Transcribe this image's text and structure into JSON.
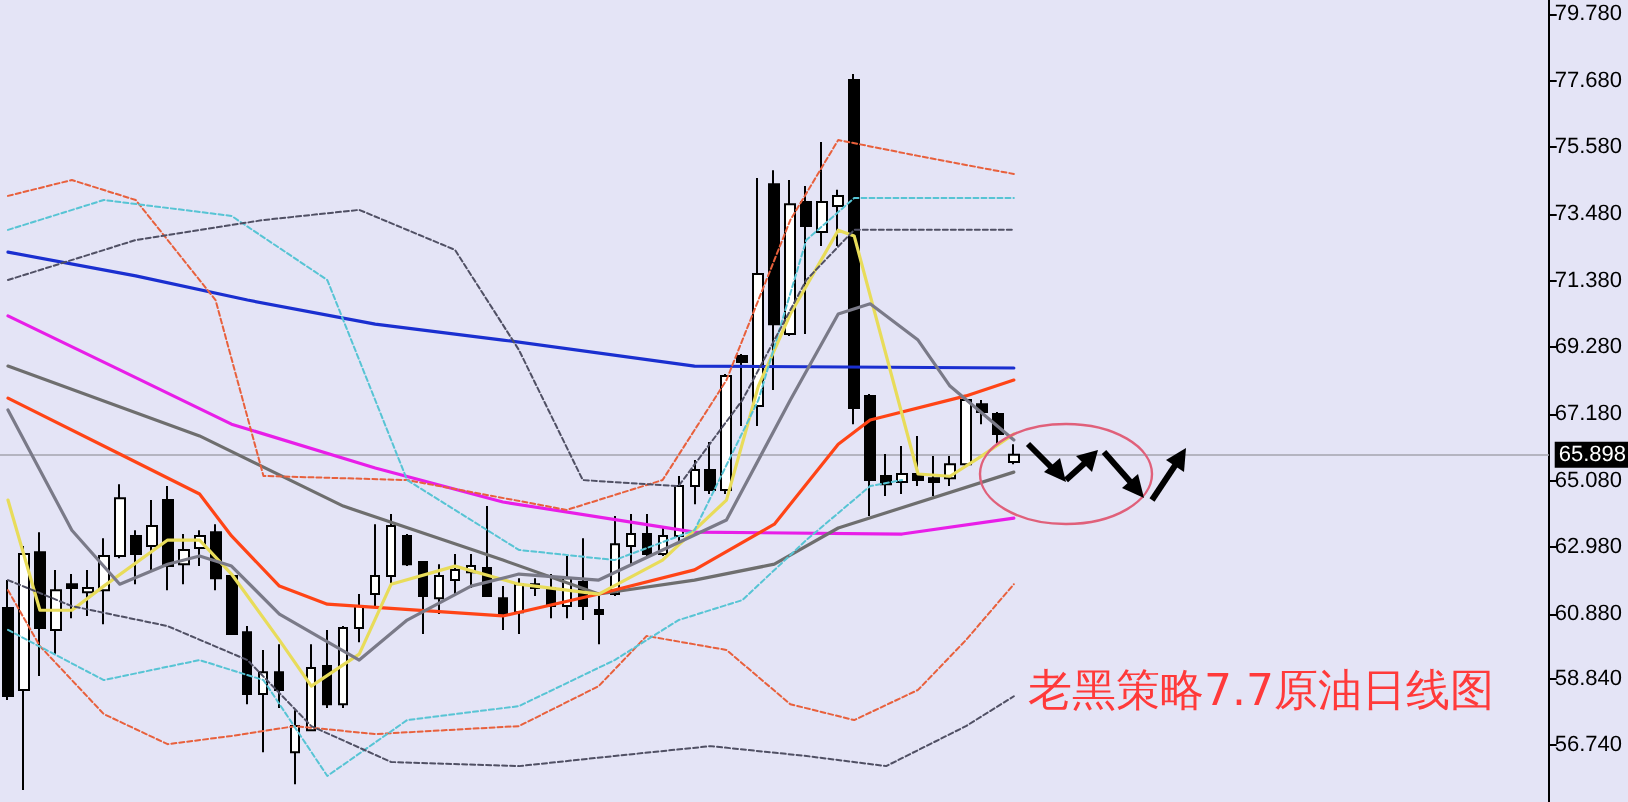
{
  "chart_data": {
    "type": "candlestick",
    "title": "老黑策略7.7原油日线图",
    "categories": [
      null,
      null,
      null,
      null,
      null,
      null,
      null,
      null,
      null,
      null,
      null,
      null,
      null,
      null,
      null,
      null,
      null,
      null,
      null,
      null,
      null,
      null,
      null,
      null,
      null,
      null,
      null,
      null,
      null,
      null,
      null,
      null,
      null,
      null,
      null,
      null,
      null,
      null,
      null,
      null,
      null,
      null,
      null,
      null,
      null,
      null,
      null,
      null,
      null,
      null,
      null,
      null,
      null,
      null,
      null,
      null,
      null,
      null,
      null,
      null,
      null,
      null,
      null,
      null,
      null,
      null,
      null,
      null,
      null,
      null,
      null,
      null,
      null,
      null,
      null,
      null,
      null,
      null,
      null,
      null,
      null,
      null,
      null,
      null,
      null,
      null,
      null,
      null,
      null,
      null,
      null,
      null,
      null,
      null,
      null,
      null,
      null
    ],
    "ohlc": [
      [
        61.07,
        61.95,
        58.17,
        58.3
      ],
      [
        58.49,
        63.02,
        55.34,
        62.77
      ],
      [
        62.83,
        63.46,
        58.93,
        60.44
      ],
      [
        60.38,
        62.27,
        59.62,
        61.63
      ],
      [
        61.82,
        62.14,
        60.75,
        61.7
      ],
      [
        61.57,
        62.27,
        60.82,
        61.7
      ],
      [
        61.63,
        63.27,
        60.56,
        62.71
      ],
      [
        62.71,
        64.97,
        62.64,
        64.53
      ],
      [
        63.34,
        63.52,
        61.82,
        62.77
      ],
      [
        63.02,
        64.47,
        62.27,
        63.65
      ],
      [
        64.47,
        64.91,
        61.63,
        62.39
      ],
      [
        62.45,
        63.4,
        61.82,
        62.9
      ],
      [
        62.96,
        63.52,
        62.39,
        63.34
      ],
      [
        63.46,
        63.71,
        61.63,
        62.01
      ],
      [
        62.08,
        62.14,
        60.25,
        60.25
      ],
      [
        60.31,
        60.5,
        58.04,
        58.36
      ],
      [
        58.36,
        59.75,
        56.53,
        59.05
      ],
      [
        59.05,
        59.93,
        57.92,
        58.49
      ],
      [
        56.53,
        57.85,
        55.52,
        57.35
      ],
      [
        57.22,
        59.93,
        57.22,
        59.18
      ],
      [
        59.24,
        60.38,
        57.92,
        58.04
      ],
      [
        58.04,
        60.5,
        57.92,
        60.44
      ],
      [
        60.44,
        61.51,
        59.99,
        61.13
      ],
      [
        61.51,
        63.71,
        61.13,
        62.08
      ],
      [
        62.08,
        64.03,
        61.76,
        63.65
      ],
      [
        63.34,
        63.4,
        62.39,
        62.45
      ],
      [
        62.52,
        62.52,
        60.25,
        61.45
      ],
      [
        61.38,
        62.45,
        60.88,
        62.08
      ],
      [
        61.95,
        62.77,
        61.51,
        62.27
      ],
      [
        62.2,
        62.77,
        61.7,
        62.39
      ],
      [
        62.33,
        64.28,
        61.45,
        61.45
      ],
      [
        61.38,
        61.76,
        60.38,
        60.88
      ],
      [
        60.94,
        62.01,
        60.25,
        61.82
      ],
      [
        61.82,
        62.01,
        61.45,
        61.7
      ],
      [
        61.7,
        62.14,
        60.75,
        61.13
      ],
      [
        61.13,
        62.71,
        60.75,
        62.01
      ],
      [
        61.89,
        63.27,
        60.69,
        61.13
      ],
      [
        61.01,
        61.45,
        59.93,
        60.88
      ],
      [
        61.51,
        63.97,
        61.45,
        63.08
      ],
      [
        63.02,
        64.03,
        62.45,
        63.4
      ],
      [
        63.4,
        64.03,
        62.71,
        62.77
      ],
      [
        62.77,
        63.65,
        62.71,
        63.34
      ],
      [
        63.34,
        65.23,
        63.02,
        64.91
      ],
      [
        64.91,
        65.73,
        64.34,
        65.42
      ],
      [
        65.42,
        66.3,
        64.66,
        64.79
      ],
      [
        64.79,
        68.44,
        64.66,
        68.38
      ],
      [
        69.01,
        69.07,
        66.8,
        68.82
      ],
      [
        67.43,
        74.61,
        66.8,
        71.59
      ],
      [
        74.42,
        74.86,
        67.94,
        70.01
      ],
      [
        69.7,
        74.55,
        69.64,
        73.79
      ],
      [
        73.86,
        74.36,
        69.7,
        73.1
      ],
      [
        72.91,
        75.75,
        72.47,
        73.86
      ],
      [
        73.73,
        74.24,
        72.47,
        74.05
      ],
      [
        77.7,
        77.89,
        66.86,
        67.37
      ],
      [
        67.75,
        67.81,
        63.97,
        65.1
      ],
      [
        65.23,
        65.92,
        64.6,
        64.97
      ],
      [
        65.04,
        66.17,
        64.66,
        65.29
      ],
      [
        65.29,
        66.49,
        64.91,
        65.1
      ],
      [
        65.16,
        65.86,
        64.6,
        65.04
      ],
      [
        65.16,
        65.86,
        64.91,
        65.6
      ],
      [
        65.6,
        67.75,
        65.54,
        67.62
      ],
      [
        67.49,
        67.62,
        66.86,
        67.24
      ],
      [
        67.18,
        67.24,
        66.23,
        66.55
      ],
      [
        65.67,
        66.23,
        65.6,
        65.9
      ],
      null,
      null,
      null,
      null,
      null,
      null,
      null,
      null,
      null,
      null,
      null,
      null,
      null,
      null,
      null,
      null,
      null,
      null,
      null,
      null,
      null,
      null,
      null,
      null,
      null,
      null,
      null,
      null,
      null,
      null,
      null,
      null,
      null
    ],
    "series": [
      {
        "type": "line",
        "color": "#1a2fd0",
        "line_style": "solid",
        "values": [
          72.28,
          null,
          null,
          null,
          null,
          null,
          null,
          null,
          71.53,
          null,
          null,
          null,
          null,
          null,
          null,
          70.77,
          null,
          null,
          null,
          null,
          null,
          null,
          null,
          70.01,
          null,
          null,
          null,
          null,
          null,
          null,
          null,
          69.51,
          null,
          null,
          null,
          null,
          null,
          null,
          null,
          null,
          null,
          null,
          null,
          68.69,
          null,
          null,
          null,
          null,
          null,
          null,
          null,
          null,
          null,
          null,
          null,
          null,
          null,
          null,
          null,
          null,
          null,
          null,
          null,
          68.63,
          null,
          null,
          null,
          null,
          null,
          null,
          null,
          null,
          null,
          null,
          null,
          null,
          null,
          null,
          null,
          null,
          null,
          null,
          null,
          null,
          null,
          null,
          null,
          null,
          null,
          null,
          null,
          null,
          null,
          null,
          null,
          null,
          null
        ]
      },
      {
        "type": "line",
        "color": "#e81ee8",
        "line_style": "solid",
        "values": [
          70.27,
          null,
          null,
          null,
          null,
          null,
          null,
          68.57,
          null,
          null,
          null,
          null,
          null,
          null,
          66.86,
          null,
          null,
          null,
          null,
          null,
          null,
          null,
          null,
          65.48,
          null,
          null,
          null,
          null,
          null,
          null,
          null,
          64.41,
          null,
          null,
          null,
          null,
          null,
          null,
          null,
          null,
          null,
          null,
          null,
          63.46,
          null,
          null,
          null,
          null,
          null,
          null,
          null,
          null,
          null,
          null,
          null,
          null,
          63.4,
          null,
          null,
          null,
          null,
          null,
          null,
          63.9,
          null,
          null,
          null,
          null,
          null,
          null,
          null,
          null,
          null,
          null,
          null,
          null,
          null,
          null,
          null,
          null,
          null,
          null,
          null,
          null,
          null,
          null,
          null,
          null,
          null,
          null,
          null,
          null,
          null,
          null,
          null,
          null,
          null
        ]
      },
      {
        "type": "line",
        "color": "#6e6e6e",
        "line_style": "solid",
        "values": [
          68.69,
          null,
          null,
          null,
          null,
          null,
          null,
          null,
          null,
          null,
          null,
          null,
          66.49,
          null,
          null,
          null,
          null,
          null,
          null,
          null,
          null,
          64.28,
          null,
          null,
          null,
          null,
          null,
          null,
          null,
          null,
          null,
          62.58,
          null,
          null,
          null,
          null,
          null,
          61.51,
          null,
          null,
          null,
          null,
          null,
          61.95,
          null,
          null,
          null,
          null,
          62.45,
          null,
          null,
          null,
          63.59,
          null,
          null,
          null,
          null,
          null,
          null,
          null,
          null,
          null,
          null,
          65.35,
          null,
          null,
          null,
          null,
          null,
          null,
          null,
          null,
          null,
          null,
          null,
          null,
          null,
          null,
          null,
          null,
          null,
          null,
          null,
          null,
          null,
          null,
          null,
          null,
          null,
          null,
          null,
          null,
          null,
          null,
          null,
          null,
          null
        ]
      },
      {
        "type": "line",
        "color": "#ff4416",
        "line_style": "solid",
        "values": [
          67.68,
          null,
          null,
          null,
          null,
          null,
          null,
          65.92,
          null,
          null,
          null,
          null,
          64.66,
          null,
          63.34,
          null,
          null,
          61.76,
          null,
          null,
          61.19,
          null,
          null,
          null,
          null,
          null,
          null,
          null,
          null,
          null,
          null,
          60.82,
          null,
          null,
          null,
          null,
          null,
          61.51,
          null,
          null,
          null,
          null,
          null,
          62.27,
          null,
          null,
          null,
          null,
          63.71,
          null,
          null,
          null,
          66.23,
          null,
          66.99,
          null,
          null,
          null,
          null,
          null,
          67.75,
          null,
          null,
          68.25,
          null,
          null,
          null,
          null,
          null,
          null,
          null,
          null,
          null,
          null,
          null,
          null,
          null,
          null,
          null,
          null,
          null,
          null,
          null,
          null,
          null,
          null,
          null,
          null,
          null,
          null,
          null,
          null,
          null,
          null,
          null,
          null,
          null
        ]
      },
      {
        "type": "line",
        "color": "#e8dc5a",
        "line_style": "solid",
        "values": [
          64.47,
          null,
          61.0,
          null,
          61.0,
          null,
          61.76,
          null,
          null,
          null,
          63.21,
          null,
          63.21,
          null,
          62.14,
          null,
          null,
          60.06,
          null,
          58.61,
          null,
          null,
          59.62,
          null,
          61.82,
          null,
          null,
          null,
          62.39,
          null,
          null,
          null,
          61.82,
          null,
          null,
          null,
          null,
          61.51,
          null,
          null,
          null,
          62.58,
          null,
          null,
          null,
          64.47,
          null,
          68.06,
          null,
          70.33,
          null,
          null,
          72.97,
          72.79,
          null,
          null,
          null,
          65.29,
          null,
          65.22,
          null,
          65.86,
          null,
          66.55,
          null,
          null,
          null,
          null,
          null,
          null,
          null,
          null,
          null,
          null,
          null,
          null,
          null,
          null,
          null,
          null,
          null,
          null,
          null,
          null,
          null,
          null,
          null,
          null,
          null,
          null,
          null,
          null,
          null,
          null,
          null,
          null,
          null
        ]
      },
      {
        "type": "line",
        "color": "#7a7a88",
        "line_style": "solid",
        "values": [
          67.31,
          null,
          null,
          null,
          63.52,
          null,
          null,
          61.82,
          null,
          null,
          62.45,
          null,
          62.71,
          null,
          62.39,
          null,
          null,
          60.88,
          null,
          null,
          null,
          null,
          59.43,
          null,
          null,
          60.69,
          null,
          null,
          null,
          61.76,
          null,
          null,
          62.14,
          null,
          null,
          null,
          null,
          61.95,
          null,
          null,
          null,
          null,
          null,
          null,
          null,
          63.84,
          null,
          null,
          null,
          67.62,
          null,
          null,
          70.33,
          null,
          70.65,
          null,
          null,
          69.51,
          null,
          68.06,
          null,
          null,
          null,
          66.36,
          null,
          null,
          null,
          null,
          null,
          null,
          null,
          null,
          null,
          null,
          null,
          null,
          null,
          null,
          null,
          null,
          null,
          null,
          null,
          null,
          null,
          null,
          null,
          null,
          null,
          null,
          null,
          null,
          null,
          null,
          null,
          null,
          null
        ]
      },
      {
        "type": "line",
        "color": "#e8603c",
        "line_style": "dashed",
        "values": [
          74.05,
          null,
          null,
          null,
          74.55,
          null,
          null,
          null,
          73.92,
          null,
          null,
          null,
          null,
          70.77,
          null,
          null,
          65.23,
          null,
          null,
          null,
          null,
          null,
          null,
          null,
          null,
          65.1,
          null,
          null,
          null,
          null,
          null,
          null,
          null,
          null,
          null,
          64.16,
          null,
          null,
          null,
          null,
          null,
          65.1,
          null,
          null,
          null,
          68.25,
          null,
          null,
          null,
          73.29,
          null,
          null,
          75.81,
          null,
          null,
          null,
          null,
          75.31,
          null,
          null,
          null,
          null,
          null,
          74.74,
          null,
          null,
          null,
          null,
          null,
          null,
          null,
          null,
          null,
          null,
          null,
          null,
          null,
          null,
          null,
          null,
          null,
          null,
          null,
          null,
          null,
          null,
          null,
          null,
          null,
          null,
          null,
          null,
          null,
          null,
          null,
          null,
          null
        ]
      },
      {
        "type": "line",
        "color": "#e8603c",
        "line_style": "dashed",
        "values": [
          61.63,
          null,
          59.87,
          null,
          null,
          null,
          57.73,
          null,
          null,
          null,
          56.78,
          null,
          null,
          null,
          57.04,
          null,
          null,
          null,
          57.35,
          null,
          null,
          null,
          null,
          57.1,
          null,
          null,
          null,
          null,
          null,
          null,
          null,
          null,
          57.35,
          null,
          null,
          null,
          null,
          58.61,
          null,
          null,
          60.19,
          null,
          null,
          null,
          null,
          59.75,
          null,
          null,
          null,
          58.04,
          null,
          null,
          null,
          57.54,
          null,
          null,
          null,
          58.49,
          null,
          null,
          60.06,
          null,
          null,
          61.82,
          null,
          null,
          null,
          null,
          null,
          null,
          null,
          null,
          null,
          null,
          null,
          null,
          null,
          null,
          null,
          null,
          null,
          null,
          null,
          null,
          null,
          null,
          null,
          null,
          null,
          null,
          null,
          null,
          null,
          null,
          null,
          null,
          null
        ]
      },
      {
        "type": "line",
        "color": "#57c4d4",
        "line_style": "dashed",
        "values": [
          72.98,
          null,
          null,
          null,
          null,
          null,
          73.92,
          null,
          null,
          null,
          null,
          null,
          null,
          null,
          73.42,
          null,
          null,
          null,
          null,
          null,
          71.4,
          null,
          null,
          null,
          null,
          65.1,
          null,
          null,
          null,
          null,
          null,
          null,
          62.9,
          null,
          null,
          null,
          null,
          null,
          62.58,
          null,
          null,
          null,
          null,
          63.52,
          null,
          null,
          null,
          67.62,
          null,
          null,
          72.66,
          null,
          null,
          73.98,
          null,
          null,
          null,
          null,
          null,
          null,
          null,
          null,
          null,
          73.98,
          null,
          null,
          null,
          null,
          null,
          null,
          null,
          null,
          null,
          null,
          null,
          null,
          null,
          null,
          null,
          null,
          null,
          null,
          null,
          null,
          null,
          null,
          null,
          null,
          null,
          null,
          null,
          null,
          null,
          null,
          null,
          null,
          null
        ]
      },
      {
        "type": "line",
        "color": "#57c4d4",
        "line_style": "dashed",
        "values": [
          60.38,
          null,
          null,
          null,
          null,
          null,
          58.8,
          null,
          null,
          null,
          null,
          null,
          59.43,
          null,
          null,
          null,
          58.8,
          null,
          null,
          null,
          55.78,
          null,
          null,
          null,
          null,
          57.54,
          null,
          null,
          null,
          null,
          null,
          null,
          57.98,
          null,
          null,
          null,
          null,
          null,
          59.43,
          null,
          null,
          null,
          60.69,
          null,
          null,
          null,
          61.32,
          null,
          null,
          null,
          63.21,
          null,
          null,
          null,
          64.91,
          null,
          65.1,
          null,
          null,
          null,
          null,
          null,
          null,
          null,
          null,
          null,
          null,
          null,
          null,
          null,
          null,
          null,
          null,
          null,
          null,
          null,
          null,
          null,
          null,
          null,
          null,
          null,
          null,
          null,
          null,
          null,
          null,
          null,
          null,
          null,
          null,
          null,
          null,
          null,
          null,
          null,
          null
        ]
      },
      {
        "type": "line",
        "color": "#505064",
        "line_style": "dashed",
        "values": [
          71.4,
          null,
          null,
          null,
          null,
          null,
          null,
          null,
          72.66,
          null,
          null,
          null,
          null,
          null,
          null,
          null,
          73.29,
          null,
          null,
          null,
          null,
          null,
          73.61,
          null,
          null,
          null,
          null,
          null,
          72.35,
          null,
          null,
          null,
          69.2,
          null,
          null,
          null,
          65.1,
          null,
          null,
          null,
          null,
          null,
          64.91,
          null,
          null,
          null,
          67.62,
          null,
          null,
          null,
          71.4,
          null,
          null,
          72.98,
          null,
          null,
          null,
          null,
          null,
          null,
          null,
          null,
          null,
          72.98,
          null,
          null,
          null,
          null,
          null,
          null,
          null,
          null,
          null,
          null,
          null,
          null,
          null,
          null,
          null,
          null,
          null,
          null,
          null,
          null,
          null,
          null,
          null,
          null,
          null,
          null,
          null,
          null,
          null,
          null,
          null,
          null,
          null
        ]
      },
      {
        "type": "line",
        "color": "#505064",
        "line_style": "dashed",
        "values": [
          61.95,
          null,
          null,
          null,
          61.13,
          null,
          null,
          null,
          null,
          null,
          60.5,
          null,
          null,
          null,
          null,
          59.43,
          null,
          null,
          null,
          57.35,
          null,
          null,
          null,
          null,
          56.22,
          null,
          null,
          null,
          null,
          null,
          null,
          null,
          56.09,
          null,
          null,
          null,
          null,
          null,
          56.41,
          null,
          null,
          null,
          null,
          null,
          56.72,
          null,
          null,
          null,
          null,
          null,
          56.41,
          null,
          null,
          null,
          null,
          56.09,
          null,
          null,
          null,
          null,
          57.35,
          null,
          null,
          58.29,
          null,
          null,
          null,
          null,
          null,
          null,
          null,
          null,
          null,
          null,
          null,
          null,
          null,
          null,
          null,
          null,
          null,
          null,
          null,
          null,
          null,
          null,
          null,
          null,
          null,
          null,
          null,
          null,
          null,
          null,
          null,
          null,
          null
        ]
      }
    ],
    "ylim": [
      54.96,
      80.22
    ],
    "yticks": [
      {
        "value": 56.74,
        "label": "56.740"
      },
      {
        "value": 58.84,
        "label": "58.840"
      },
      {
        "value": 60.88,
        "label": "60.880"
      },
      {
        "value": 62.98,
        "label": "62.980"
      },
      {
        "value": 65.08,
        "label": "65.080"
      },
      {
        "value": 67.18,
        "label": "67.180"
      },
      {
        "value": 69.28,
        "label": "69.280"
      },
      {
        "value": 71.38,
        "label": "71.380"
      },
      {
        "value": 73.48,
        "label": "73.480"
      },
      {
        "value": 75.58,
        "label": "75.580"
      },
      {
        "value": 77.68,
        "label": "77.680"
      },
      {
        "value": 79.78,
        "label": "79.780"
      }
    ],
    "ref_lines": [
      {
        "axis": "y",
        "value": 65.898,
        "label": "65.898",
        "color": "#b4b4c0"
      }
    ],
    "grid": false
  }
}
